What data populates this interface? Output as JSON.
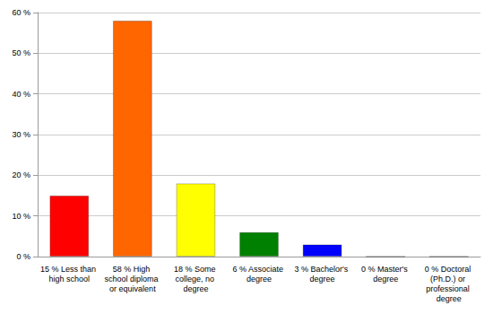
{
  "chart_data": {
    "type": "bar",
    "categories": [
      "15 % Less than high school",
      "58 % High school diploma or equivalent",
      "18 % Some college, no degree",
      "6 % Associate degree",
      "3 % Bachelor's degree",
      "0 % Master's degree",
      "0 % Doctoral (Ph.D.) or professional degree"
    ],
    "values": [
      15,
      58,
      18,
      6,
      3,
      0,
      0
    ],
    "colors": [
      "#ff0000",
      "#ff6600",
      "#ffff00",
      "#008000",
      "#0000ff",
      "#9900ff",
      "#ff00ff"
    ],
    "ylim": [
      0,
      60
    ],
    "yticks": [
      {
        "value": 0,
        "label": "0 %"
      },
      {
        "value": 10,
        "label": "10 %"
      },
      {
        "value": 20,
        "label": "20 %"
      },
      {
        "value": 30,
        "label": "30 %"
      },
      {
        "value": 40,
        "label": "40 %"
      },
      {
        "value": 50,
        "label": "50 %"
      },
      {
        "value": 60,
        "label": "60 %"
      }
    ],
    "grid": true
  }
}
